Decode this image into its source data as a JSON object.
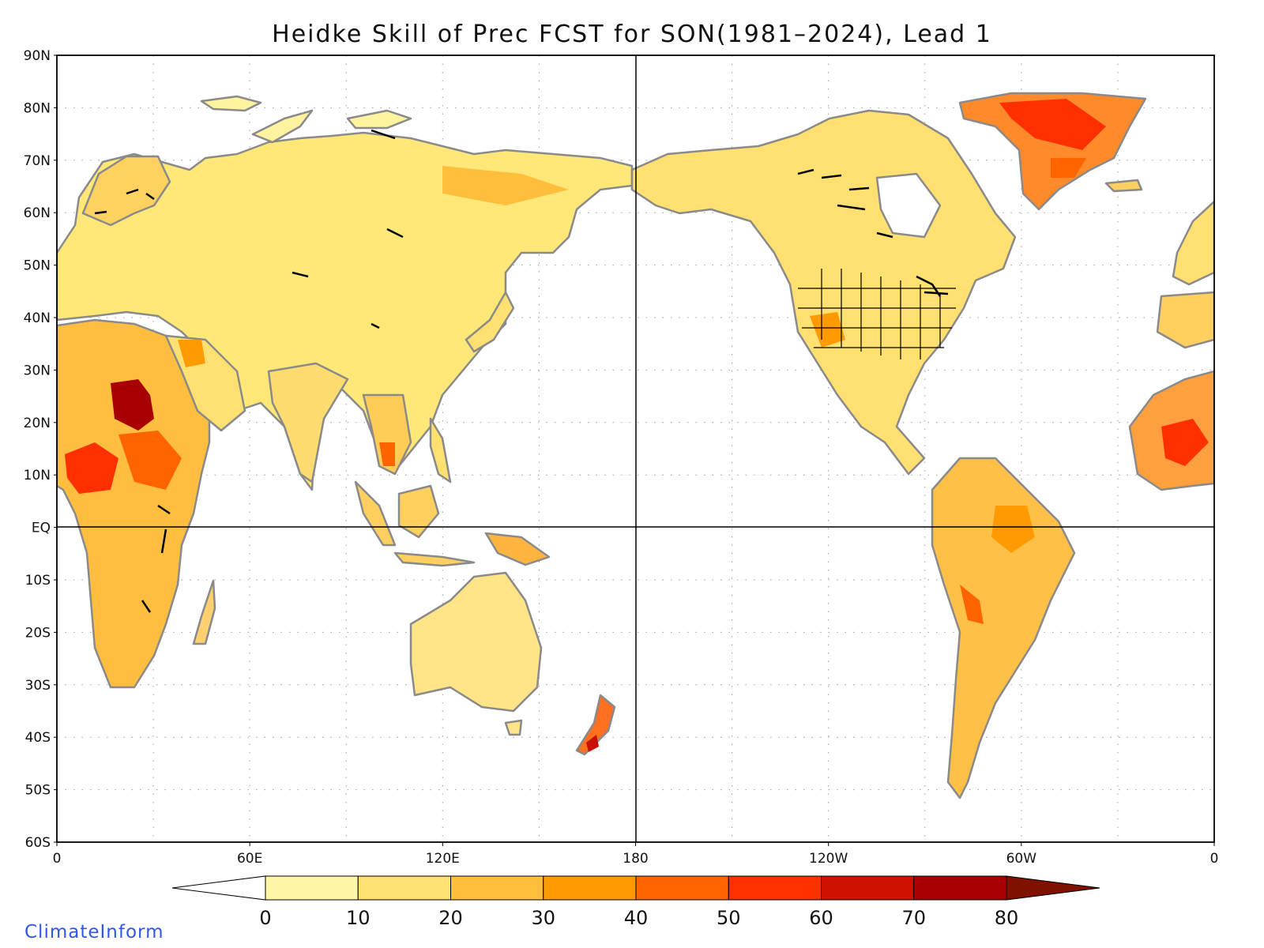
{
  "title": "Heidke Skill of Prec FCST for SON(1981–2024), Lead 1",
  "brand": "ClimateInform",
  "map": {
    "projection": "cylindrical equidistant",
    "lon_range": [
      0,
      360
    ],
    "lat_range": [
      -60,
      90
    ],
    "lat_labels": [
      "90N",
      "80N",
      "70N",
      "60N",
      "50N",
      "40N",
      "30N",
      "20N",
      "10N",
      "EQ",
      "10S",
      "20S",
      "30S",
      "40S",
      "50S",
      "60S"
    ],
    "lon_labels": [
      "0",
      "60E",
      "120E",
      "180",
      "120W",
      "60W",
      "0"
    ],
    "grid": "dotted",
    "equator_line": true,
    "dateline_line": true,
    "land_outline_color": "#8a8a8a",
    "lake_outline_color": "#000000"
  },
  "colorbar": {
    "labels": [
      "0",
      "10",
      "20",
      "30",
      "40",
      "50",
      "60",
      "70",
      "80"
    ],
    "colors": [
      "#ffffff",
      "#fff6a8",
      "#ffe070",
      "#ffbe3c",
      "#ff9a00",
      "#ff6400",
      "#ff3000",
      "#d01000",
      "#a80000",
      "#801000"
    ]
  },
  "regions": [
    {
      "name": "sahel-peak",
      "value": 75
    },
    {
      "name": "central-africa",
      "value": 55
    },
    {
      "name": "greenland",
      "value": 55
    },
    {
      "name": "new-zealand",
      "value": 55
    },
    {
      "name": "andes",
      "value": 45
    },
    {
      "name": "amazon",
      "value": 35
    },
    {
      "name": "siberia",
      "value": 28
    },
    {
      "name": "australia",
      "value": 22
    },
    {
      "name": "north-america",
      "value": 25
    }
  ]
}
